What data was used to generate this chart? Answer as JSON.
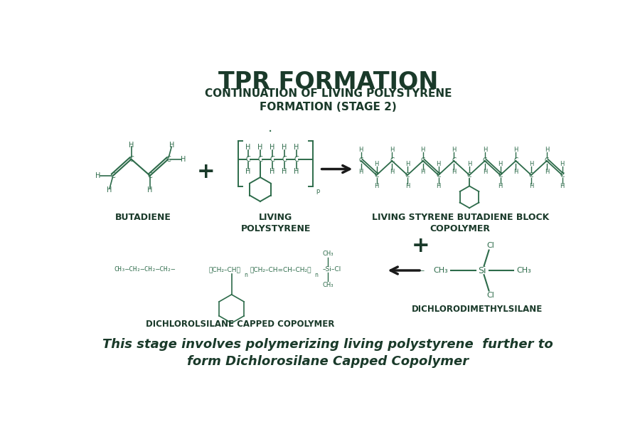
{
  "title": "TPR FORMATION",
  "subtitle": "CONTINUATION OF LIVING POLYSTYRENE\nFORMATION (STAGE 2)",
  "title_color": "#1a3a2a",
  "chem_color": "#2d6b4a",
  "label_color": "#1a3a2a",
  "arrow_color": "#1a1a1a",
  "bg_color": "#ffffff",
  "bottom_text_line1": "This stage involves polymerizing living polystyrene  further to",
  "bottom_text_line2": "form Dichlorosilane Capped Copolymer",
  "label_butadiene": "BUTADIENE",
  "label_living_poly": "LIVING\nPOLYSTYRENE",
  "label_living_sbc": "LIVING STYRENE BUTADIENE BLOCK\nCOPOLYMER",
  "label_dcsc": "DICHLOROLSILANE CAPPED COPOLYMER",
  "label_dcms": "DICHLORODIMETHYLSILANE"
}
